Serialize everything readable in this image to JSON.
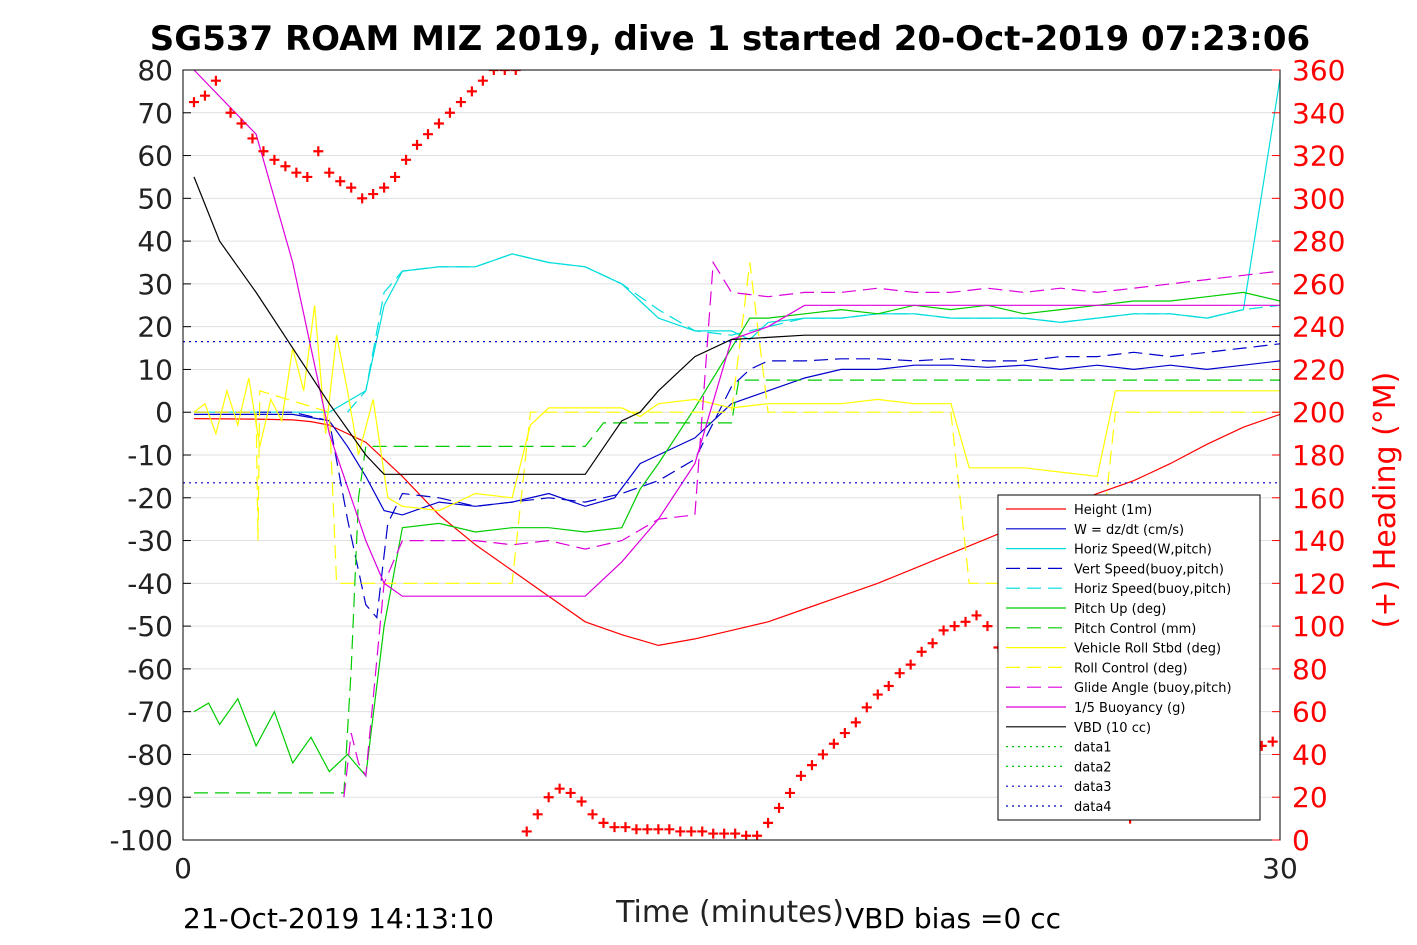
{
  "chart_data": {
    "type": "line",
    "title": "SG537 ROAM MIZ 2019, dive 1 started 20-Oct-2019 07:23:06",
    "xlabel": "Time (minutes)",
    "ylabel": "",
    "y2label": "(+) Heading (°M)",
    "xlim": [
      0,
      30
    ],
    "ylim": [
      -100,
      80
    ],
    "y2lim": [
      0,
      360
    ],
    "xticks": [
      "0",
      "30"
    ],
    "yticks": [
      "80",
      "70",
      "60",
      "50",
      "40",
      "30",
      "20",
      "10",
      "0",
      "-10",
      "-20",
      "-30",
      "-40",
      "-50",
      "-60",
      "-70",
      "-80",
      "-90",
      "-100"
    ],
    "y2ticks": [
      "360",
      "340",
      "320",
      "300",
      "280",
      "260",
      "240",
      "220",
      "200",
      "180",
      "160",
      "140",
      "120",
      "100",
      "80",
      "60",
      "40",
      "20",
      "0"
    ],
    "grid": true,
    "legend_position": "lower-right",
    "footer_left": "21-Oct-2019 14:13:10",
    "footer_right": "VBD bias =0 cc",
    "series": [
      {
        "name": "Height (1m)",
        "color": "#ff0000",
        "dash": "solid",
        "x": [
          0.3,
          2,
          3,
          3.5,
          4,
          5,
          6,
          7,
          8,
          9,
          10,
          11,
          12,
          13,
          14,
          15,
          16,
          17,
          18,
          19,
          20,
          21,
          22,
          23,
          24,
          25,
          26,
          27,
          28,
          29,
          30
        ],
        "y": [
          -1.5,
          -1.6,
          -1.8,
          -2.2,
          -3,
          -7,
          -15,
          -24,
          -31,
          -37,
          -43,
          -49,
          -52,
          -54.5,
          -53,
          -51,
          -49,
          -46,
          -43,
          -40,
          -36.5,
          -33,
          -29.5,
          -26,
          -22.5,
          -19,
          -16,
          -12,
          -7.5,
          -3.5,
          -0.5
        ]
      },
      {
        "name": "W = dz/dt (cm/s)",
        "color": "#0000cc",
        "dash": "solid",
        "x": [
          0.3,
          3,
          4,
          4.5,
          5,
          5.5,
          6,
          7,
          8,
          9,
          10,
          11,
          11.8,
          12.5,
          13,
          14,
          15,
          16,
          17,
          18,
          19,
          20,
          21,
          22,
          23,
          24,
          25,
          26,
          27,
          28,
          29,
          30
        ],
        "y": [
          -0.5,
          -0.5,
          -2,
          -8,
          -15,
          -23,
          -24,
          -21,
          -22,
          -21,
          -19,
          -22,
          -20,
          -12,
          -10,
          -6,
          2,
          5,
          8,
          10,
          10,
          11,
          11,
          10.5,
          11,
          10,
          11,
          10,
          11,
          10,
          11,
          12
        ]
      },
      {
        "name": "Horiz Speed(W,pitch)",
        "color": "#00dddd",
        "dash": "solid",
        "x": [
          0.3,
          3,
          4,
          5,
          5.5,
          6,
          7,
          8,
          9,
          10,
          11,
          12,
          12.5,
          13,
          14,
          15,
          15.5,
          16,
          17,
          18,
          19,
          20,
          21,
          22,
          23,
          24,
          25,
          26,
          27,
          28,
          29,
          30
        ],
        "y": [
          0,
          0,
          0,
          5,
          25,
          33,
          34,
          34,
          37,
          35,
          34,
          30,
          26,
          22,
          19,
          19,
          17,
          21,
          22,
          22,
          23,
          23,
          22,
          22,
          22,
          21,
          22,
          23,
          23,
          22,
          24,
          78
        ]
      },
      {
        "name": "Vert Speed(buoy,pitch)",
        "color": "#0000cc",
        "dash": "dashed",
        "x": [
          0.3,
          3,
          4,
          4.5,
          5,
          5.3,
          5.6,
          6,
          7,
          8,
          9,
          10,
          11,
          12,
          13,
          14,
          15,
          15.5,
          16,
          17,
          18,
          19,
          20,
          21,
          22,
          23,
          24,
          25,
          26,
          27,
          28,
          29,
          30
        ],
        "y": [
          0,
          0,
          -2,
          -25,
          -45,
          -48,
          -26,
          -19,
          -20,
          -22,
          -21,
          -20,
          -21,
          -19,
          -16,
          -11,
          6,
          10,
          12,
          12,
          12.5,
          12.5,
          12,
          12.5,
          12,
          12,
          13,
          13,
          14,
          13,
          14,
          15,
          16
        ]
      },
      {
        "name": "Horiz Speed(buoy,pitch)",
        "color": "#00dddd",
        "dash": "dashed",
        "x": [
          4.5,
          5,
          5.5,
          6,
          7,
          8,
          9,
          10,
          11,
          12,
          13,
          14,
          15,
          16,
          17,
          18,
          19,
          20,
          21,
          22,
          23,
          24,
          25,
          26,
          27,
          28,
          29,
          30
        ],
        "y": [
          0,
          5,
          28,
          33,
          34,
          34,
          37,
          35,
          34,
          30,
          24,
          19,
          18,
          20,
          22,
          22,
          23,
          23,
          22,
          22,
          22,
          21,
          22,
          23,
          23,
          22,
          24,
          25
        ]
      },
      {
        "name": "Pitch Up (deg)",
        "color": "#00cc00",
        "dash": "solid",
        "x": [
          0.3,
          0.7,
          1,
          1.5,
          2,
          2.5,
          3,
          3.5,
          4,
          4.5,
          5,
          5.5,
          6,
          7,
          8,
          9,
          10,
          11,
          12,
          12.5,
          13,
          14,
          15,
          15.5,
          16,
          17,
          18,
          19,
          20,
          21,
          22,
          23,
          24,
          25,
          26,
          27,
          28,
          29,
          30
        ],
        "y": [
          -70,
          -68,
          -73,
          -67,
          -78,
          -70,
          -82,
          -76,
          -84,
          -80,
          -85,
          -50,
          -27,
          -26,
          -28,
          -27,
          -27,
          -28,
          -27,
          -18,
          -12,
          1,
          15,
          22,
          22,
          23,
          24,
          23,
          25,
          24,
          25,
          23,
          24,
          25,
          26,
          26,
          27,
          28,
          26
        ]
      },
      {
        "name": "Pitch Control (mm)",
        "color": "#00cc00",
        "dash": "dashed",
        "x": [
          0.3,
          4.4,
          4.6,
          4.8,
          5,
          6,
          7,
          8,
          9,
          10,
          11,
          11.5,
          12,
          13,
          14,
          15,
          15.2,
          16,
          17,
          18,
          19,
          20,
          21,
          22,
          23,
          24,
          25,
          26,
          27,
          28,
          29,
          30
        ],
        "y": [
          -89,
          -89,
          -60,
          -20,
          -8,
          -8,
          -8,
          -8,
          -8,
          -8,
          -8,
          -2.5,
          -2.5,
          -2.5,
          -2.5,
          -2.5,
          7.5,
          7.5,
          7.5,
          7.5,
          7.5,
          7.5,
          7.5,
          7.5,
          7.5,
          7.5,
          7.5,
          7.5,
          7.5,
          7.5,
          7.5,
          7.5
        ]
      },
      {
        "name": "Vehicle Roll Stbd (deg)",
        "color": "#ffff00",
        "dash": "solid",
        "x": [
          0.3,
          0.6,
          0.9,
          1.2,
          1.5,
          1.8,
          2.1,
          2.4,
          2.7,
          3,
          3.3,
          3.6,
          3.9,
          4.2,
          4.5,
          4.8,
          5.2,
          5.6,
          6,
          7,
          8,
          9,
          9.5,
          10,
          11,
          12,
          12.5,
          13,
          14,
          15,
          16,
          17,
          18,
          19,
          20,
          21,
          21.5,
          22,
          23,
          24,
          25,
          25.5,
          26,
          27,
          28,
          29,
          30
        ],
        "y": [
          0,
          2,
          -5,
          5,
          -3,
          8,
          -8,
          3,
          -2,
          15,
          5,
          25,
          -5,
          18,
          5,
          -10,
          3,
          -20,
          -22,
          -23,
          -19,
          -20,
          -3,
          1,
          1,
          1,
          -1,
          2,
          3,
          1,
          2,
          2,
          2,
          3,
          2,
          2,
          -13,
          -13,
          -13,
          -14,
          -15,
          5,
          5,
          5,
          5,
          5,
          5
        ]
      },
      {
        "name": "Roll Control (deg)",
        "color": "#ffff00",
        "dash": "dashed",
        "x": [
          0.3,
          2,
          2.05,
          2.1,
          4,
          4.2,
          5,
          6,
          7,
          8,
          9,
          9.5,
          10,
          11,
          12,
          13,
          14,
          15,
          15.5,
          16,
          17,
          18,
          19,
          20,
          21,
          21.5,
          22,
          23,
          24,
          25,
          25.5,
          26,
          27,
          28,
          29,
          30
        ],
        "y": [
          0,
          0,
          -30,
          5,
          0,
          -40,
          -40,
          -40,
          -40,
          -40,
          -40,
          0,
          0,
          0,
          0,
          0,
          0,
          0,
          35,
          0,
          0,
          0,
          0,
          0,
          0,
          -40,
          -40,
          -40,
          -40,
          -40,
          0,
          0,
          0,
          0,
          0,
          0
        ]
      },
      {
        "name": "Glide Angle (buoy,pitch)",
        "color": "#dd00dd",
        "dash": "dashed",
        "x": [
          4.4,
          4.6,
          4.8,
          5,
          5.5,
          6,
          7,
          8,
          9,
          10,
          11,
          12,
          13,
          14,
          14.5,
          15,
          16,
          17,
          18,
          19,
          20,
          21,
          22,
          23,
          24,
          25,
          26,
          27,
          28,
          29,
          30
        ],
        "y": [
          -90,
          -75,
          -82,
          -85,
          -40,
          -30,
          -30,
          -30,
          -31,
          -30,
          -32,
          -30,
          -25,
          -24,
          35,
          28,
          27,
          28,
          28,
          29,
          28,
          28,
          29,
          28,
          29,
          28,
          29,
          30,
          31,
          32,
          33
        ]
      },
      {
        "name": "1/5 Buoyancy (g)",
        "color": "#dd00dd",
        "dash": "solid",
        "x": [
          0.3,
          2,
          3,
          4,
          5,
          5.5,
          6,
          7,
          8,
          9,
          10,
          11,
          12,
          13,
          14,
          15,
          16,
          17,
          18,
          19,
          20,
          21,
          22,
          23,
          24,
          25,
          26,
          27,
          28,
          29,
          30
        ],
        "y": [
          80,
          65,
          35,
          -5,
          -30,
          -40,
          -43,
          -43,
          -43,
          -43,
          -43,
          -43,
          -35,
          -25,
          -12,
          17,
          20,
          25,
          25,
          25,
          25,
          25,
          25,
          25,
          25,
          25,
          25,
          25,
          25,
          25,
          25
        ]
      },
      {
        "name": "VBD (10 cc)",
        "color": "#000000",
        "dash": "solid",
        "x": [
          0.3,
          1,
          2,
          3,
          4,
          5,
          5.5,
          6,
          7,
          8,
          9,
          10,
          11,
          12,
          12.5,
          13,
          14,
          15,
          16,
          17,
          18,
          19,
          20,
          21,
          22,
          23,
          24,
          25,
          26,
          27,
          28,
          29,
          30
        ],
        "y": [
          55,
          40,
          28,
          15,
          2,
          -10,
          -14.5,
          -14.5,
          -14.5,
          -14.5,
          -14.5,
          -14.5,
          -14.5,
          -2,
          0,
          5,
          13,
          17,
          17.5,
          18,
          18,
          18,
          18,
          18,
          18,
          18,
          18,
          18,
          18,
          18,
          18,
          18,
          18
        ]
      },
      {
        "name": "data1",
        "color": "#00cc00",
        "dash": "dotted",
        "x": [],
        "y": []
      },
      {
        "name": "data2",
        "color": "#00cc00",
        "dash": "dotted",
        "x": [],
        "y": []
      },
      {
        "name": "data3",
        "color": "#0000cc",
        "dash": "dotted",
        "x": [
          0,
          30
        ],
        "y": [
          -16.5,
          -16.5
        ]
      },
      {
        "name": "data4",
        "color": "#0000cc",
        "dash": "dotted",
        "x": [
          0,
          30
        ],
        "y": [
          16.5,
          16.5
        ]
      }
    ],
    "heading": {
      "color": "#ff0000",
      "axis": "right",
      "x": [
        0.3,
        0.6,
        0.9,
        1.3,
        1.6,
        1.9,
        2.2,
        2.5,
        2.8,
        3.1,
        3.4,
        3.7,
        4.0,
        4.3,
        4.6,
        4.9,
        5.2,
        5.5,
        5.8,
        6.1,
        6.4,
        6.7,
        7.0,
        7.3,
        7.6,
        7.9,
        8.2,
        8.5,
        8.8,
        9.1,
        9.4,
        9.7,
        10.0,
        10.3,
        10.6,
        10.9,
        11.2,
        11.5,
        11.8,
        12.1,
        12.4,
        12.7,
        13.0,
        13.3,
        13.6,
        13.9,
        14.2,
        14.5,
        14.8,
        15.1,
        15.4,
        15.7,
        16.0,
        16.3,
        16.6,
        16.9,
        17.2,
        17.5,
        17.8,
        18.1,
        18.4,
        18.7,
        19.0,
        19.3,
        19.6,
        19.9,
        20.2,
        20.5,
        20.8,
        21.1,
        21.4,
        21.7,
        22.0,
        22.3,
        22.6,
        22.9,
        23.2,
        23.5,
        23.8,
        24.1,
        24.4,
        24.7,
        25.0,
        25.3,
        25.6,
        25.9,
        26.2,
        26.5,
        26.8,
        27.1,
        27.4,
        27.7,
        28.0,
        28.3,
        28.6,
        28.9,
        29.2,
        29.5,
        29.8
      ],
      "y": [
        345,
        348,
        355,
        340,
        335,
        328,
        322,
        318,
        315,
        312,
        310,
        322,
        312,
        308,
        305,
        300,
        302,
        305,
        310,
        318,
        325,
        330,
        335,
        340,
        345,
        350,
        355,
        360,
        360,
        360,
        4,
        12,
        20,
        24,
        22,
        18,
        12,
        8,
        6,
        6,
        5,
        5,
        5,
        5,
        4,
        4,
        4,
        3,
        3,
        3,
        2,
        2,
        8,
        15,
        22,
        30,
        35,
        40,
        45,
        50,
        55,
        62,
        68,
        72,
        78,
        82,
        88,
        92,
        98,
        100,
        102,
        105,
        100,
        90,
        80,
        70,
        60,
        50,
        42,
        35,
        28,
        22,
        20,
        18,
        15,
        10,
        12,
        20,
        28,
        32,
        33,
        34,
        36,
        38,
        37,
        40,
        42,
        44,
        46
      ]
    }
  }
}
